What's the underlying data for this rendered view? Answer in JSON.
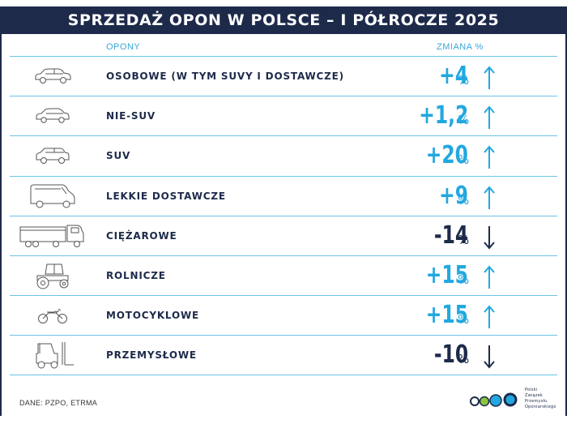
{
  "header": {
    "title": "SPRZEDAŻ OPON W POLSCE – I PÓŁROCZE 2025"
  },
  "columns": {
    "tires": "OPONY",
    "change": "ZMIANA %"
  },
  "rows": [
    {
      "label": "OSOBOWE (W TYM SUVY I DOSTAWCZE)",
      "value": "+4",
      "unit": "%",
      "direction": "up",
      "icon": "passenger-car-icon"
    },
    {
      "label": "NIE-SUV",
      "value": "+1,2",
      "unit": "%",
      "direction": "up",
      "icon": "hatchback-car-icon"
    },
    {
      "label": "SUV",
      "value": "+20",
      "unit": "%",
      "direction": "up",
      "icon": "suv-icon"
    },
    {
      "label": "LEKKIE DOSTAWCZE",
      "value": "+9",
      "unit": "%",
      "direction": "up",
      "icon": "van-icon"
    },
    {
      "label": "CIĘŻAROWE",
      "value": "-14",
      "unit": "%",
      "direction": "down",
      "icon": "truck-icon"
    },
    {
      "label": "ROLNICZE",
      "value": "+15",
      "unit": "%",
      "direction": "up",
      "icon": "tractor-icon"
    },
    {
      "label": "MOTOCYKLOWE",
      "value": "+15",
      "unit": "%",
      "direction": "up",
      "icon": "motorcycle-icon"
    },
    {
      "label": "PRZEMYSŁOWE",
      "value": "-10",
      "unit": "%",
      "direction": "down",
      "icon": "forklift-icon"
    }
  ],
  "footer": {
    "source": "DANE: PZPO, ETRMA",
    "org_lines": [
      "Polski",
      "Związek",
      "Przemysłu",
      "Oponiarskiego"
    ]
  },
  "colors": {
    "navy": "#1d2a4a",
    "accent": "#22a8df",
    "divider": "#6cc2e6"
  }
}
